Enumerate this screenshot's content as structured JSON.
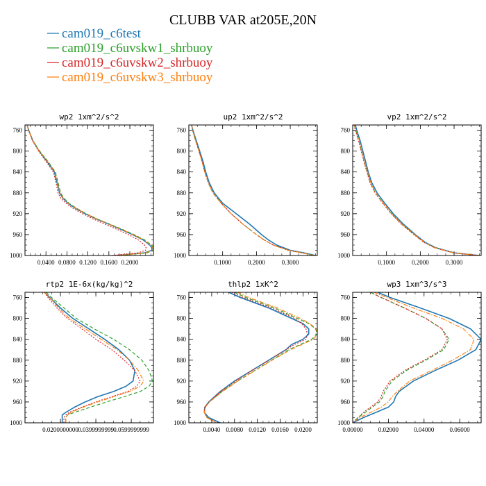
{
  "title": "CLUBB VAR at205E,20N",
  "legend": [
    {
      "label": "cam019_c6test",
      "color": "#1f77b4",
      "dash": "solid"
    },
    {
      "label": "cam019_c6uvskw1_shrbuoy",
      "color": "#2ca02c",
      "dash": "dashed"
    },
    {
      "label": "cam019_c6uvskw2_shrbuoy",
      "color": "#d62728",
      "dash": "dotted"
    },
    {
      "label": "cam019_c6uvskw3_shrbuoy",
      "color": "#ff7f0e",
      "dash": "dashdot"
    }
  ],
  "chart_data": [
    {
      "type": "line",
      "title": "wp2  1xm^2/s^2",
      "ylim": [
        1000,
        750
      ],
      "y_ticks": [
        "760",
        "800",
        "840",
        "880",
        "920",
        "960",
        "1000"
      ],
      "y_tick_values": [
        760,
        800,
        840,
        880,
        920,
        960,
        1000
      ],
      "xlim": [
        0.0,
        0.245
      ],
      "x_ticks": [
        "0.0400",
        "0.0800",
        "0.1200",
        "0.1600",
        "0.2000"
      ],
      "x_tick_values": [
        0.04,
        0.08,
        0.12,
        0.16,
        0.2
      ],
      "y": [
        750,
        760,
        780,
        800,
        820,
        840,
        860,
        880,
        890,
        900,
        910,
        920,
        930,
        940,
        950,
        960,
        970,
        980,
        985,
        990,
        995,
        1000
      ],
      "series": [
        {
          "values": [
            0.004,
            0.007,
            0.015,
            0.027,
            0.042,
            0.056,
            0.061,
            0.066,
            0.072,
            0.082,
            0.097,
            0.115,
            0.136,
            0.16,
            0.183,
            0.205,
            0.225,
            0.238,
            0.242,
            0.242,
            0.228,
            0.175
          ]
        },
        {
          "values": [
            0.004,
            0.007,
            0.015,
            0.028,
            0.044,
            0.058,
            0.063,
            0.068,
            0.074,
            0.084,
            0.099,
            0.117,
            0.138,
            0.162,
            0.186,
            0.208,
            0.228,
            0.241,
            0.246,
            0.246,
            0.233,
            0.18
          ]
        },
        {
          "values": [
            0.004,
            0.007,
            0.014,
            0.026,
            0.04,
            0.054,
            0.059,
            0.063,
            0.068,
            0.078,
            0.092,
            0.11,
            0.13,
            0.153,
            0.176,
            0.197,
            0.216,
            0.228,
            0.231,
            0.23,
            0.215,
            0.165
          ]
        },
        {
          "values": [
            0.004,
            0.007,
            0.015,
            0.027,
            0.043,
            0.057,
            0.062,
            0.067,
            0.073,
            0.083,
            0.098,
            0.116,
            0.137,
            0.161,
            0.184,
            0.206,
            0.226,
            0.239,
            0.244,
            0.244,
            0.23,
            0.177
          ]
        }
      ]
    },
    {
      "type": "line",
      "title": "up2  1xm^2/s^2",
      "ylim": [
        1000,
        750
      ],
      "y_ticks": [
        "760",
        "800",
        "840",
        "880",
        "920",
        "960",
        "1000"
      ],
      "y_tick_values": [
        760,
        800,
        840,
        880,
        920,
        960,
        1000
      ],
      "xlim": [
        0.0,
        0.38
      ],
      "x_ticks": [
        "0.1000",
        "0.2000",
        "0.3000"
      ],
      "x_tick_values": [
        0.1,
        0.2,
        0.3
      ],
      "y": [
        750,
        760,
        780,
        800,
        820,
        840,
        860,
        880,
        900,
        920,
        940,
        960,
        970,
        980,
        990,
        995,
        1000
      ],
      "series": [
        {
          "values": [
            0.008,
            0.012,
            0.022,
            0.032,
            0.042,
            0.05,
            0.06,
            0.075,
            0.1,
            0.14,
            0.18,
            0.215,
            0.235,
            0.26,
            0.3,
            0.34,
            0.375
          ]
        },
        {
          "values": [
            0.008,
            0.011,
            0.02,
            0.03,
            0.039,
            0.047,
            0.057,
            0.071,
            0.096,
            0.125,
            0.16,
            0.2,
            0.222,
            0.25,
            0.295,
            0.335,
            0.372
          ]
        },
        {
          "values": [
            0.008,
            0.011,
            0.02,
            0.03,
            0.039,
            0.047,
            0.057,
            0.071,
            0.096,
            0.125,
            0.16,
            0.2,
            0.222,
            0.25,
            0.295,
            0.335,
            0.372
          ]
        },
        {
          "values": [
            0.008,
            0.011,
            0.02,
            0.03,
            0.039,
            0.047,
            0.057,
            0.071,
            0.096,
            0.125,
            0.16,
            0.2,
            0.222,
            0.25,
            0.295,
            0.335,
            0.372
          ]
        }
      ]
    },
    {
      "type": "line",
      "title": "vp2  1xm^2/s^2",
      "ylim": [
        1000,
        750
      ],
      "y_ticks": [
        "760",
        "800",
        "840",
        "880",
        "920",
        "960",
        "1000"
      ],
      "y_tick_values": [
        760,
        800,
        840,
        880,
        920,
        960,
        1000
      ],
      "xlim": [
        0.0,
        0.38
      ],
      "x_ticks": [
        "0.1000",
        "0.2000",
        "0.3000"
      ],
      "x_tick_values": [
        0.1,
        0.2,
        0.3
      ],
      "y": [
        750,
        760,
        780,
        800,
        820,
        840,
        860,
        880,
        900,
        920,
        940,
        960,
        975,
        985,
        995,
        1000
      ],
      "series": [
        {
          "values": [
            0.008,
            0.012,
            0.022,
            0.03,
            0.038,
            0.046,
            0.056,
            0.072,
            0.095,
            0.12,
            0.15,
            0.185,
            0.215,
            0.245,
            0.3,
            0.375
          ]
        },
        {
          "values": [
            0.005,
            0.009,
            0.018,
            0.026,
            0.034,
            0.043,
            0.052,
            0.067,
            0.09,
            0.115,
            0.145,
            0.182,
            0.212,
            0.242,
            0.298,
            0.373
          ]
        },
        {
          "values": [
            0.004,
            0.008,
            0.017,
            0.025,
            0.033,
            0.042,
            0.051,
            0.066,
            0.089,
            0.114,
            0.144,
            0.181,
            0.211,
            0.241,
            0.297,
            0.372
          ]
        },
        {
          "values": [
            0.006,
            0.01,
            0.019,
            0.027,
            0.035,
            0.044,
            0.053,
            0.068,
            0.091,
            0.116,
            0.146,
            0.183,
            0.213,
            0.243,
            0.299,
            0.374
          ]
        }
      ]
    },
    {
      "type": "line",
      "title": "rtp2  1E-6x(kg/kg)^2",
      "ylim": [
        1000,
        750
      ],
      "y_ticks": [
        "760",
        "800",
        "840",
        "880",
        "920",
        "960",
        "1000"
      ],
      "y_tick_values": [
        760,
        800,
        840,
        880,
        920,
        960,
        1000
      ],
      "xlim": [
        0.0,
        0.0725
      ],
      "x_ticks": [
        "0.0200000000",
        "0.0399999999",
        "0.0599999999"
      ],
      "x_tick_values": [
        0.02,
        0.04,
        0.06
      ],
      "y": [
        750,
        760,
        780,
        800,
        820,
        840,
        860,
        880,
        900,
        920,
        930,
        940,
        950,
        960,
        970,
        980,
        985,
        990,
        1000
      ],
      "series": [
        {
          "values": [
            0.011,
            0.014,
            0.02,
            0.027,
            0.036,
            0.045,
            0.053,
            0.059,
            0.062,
            0.061,
            0.057,
            0.05,
            0.041,
            0.034,
            0.028,
            0.023,
            0.021,
            0.021,
            0.021
          ]
        },
        {
          "values": [
            0.012,
            0.015,
            0.022,
            0.029,
            0.039,
            0.05,
            0.059,
            0.066,
            0.07,
            0.072,
            0.07,
            0.065,
            0.056,
            0.046,
            0.037,
            0.028,
            0.024,
            0.023,
            0.023
          ]
        },
        {
          "values": [
            0.011,
            0.013,
            0.018,
            0.024,
            0.032,
            0.04,
            0.049,
            0.056,
            0.062,
            0.065,
            0.063,
            0.058,
            0.049,
            0.04,
            0.032,
            0.025,
            0.023,
            0.022,
            0.022
          ]
        },
        {
          "values": [
            0.011,
            0.014,
            0.019,
            0.025,
            0.034,
            0.043,
            0.052,
            0.059,
            0.064,
            0.067,
            0.065,
            0.059,
            0.05,
            0.041,
            0.033,
            0.026,
            0.024,
            0.023,
            0.023
          ]
        }
      ]
    },
    {
      "type": "line",
      "title": "thlp2  1xK^2",
      "ylim": [
        1000,
        750
      ],
      "y_ticks": [
        "760",
        "800",
        "840",
        "880",
        "920",
        "960",
        "1000"
      ],
      "y_tick_values": [
        760,
        800,
        840,
        880,
        920,
        960,
        1000
      ],
      "xlim": [
        0.0,
        0.0225
      ],
      "x_ticks": [
        "0.0040",
        "0.0080",
        "0.0120",
        "0.0160",
        "0.0200"
      ],
      "x_tick_values": [
        0.004,
        0.008,
        0.012,
        0.016,
        0.02
      ],
      "y": [
        750,
        760,
        780,
        800,
        810,
        820,
        830,
        840,
        850,
        860,
        880,
        900,
        920,
        940,
        960,
        970,
        980,
        990,
        1000
      ],
      "series": [
        {
          "values": [
            0.007,
            0.009,
            0.014,
            0.018,
            0.02,
            0.021,
            0.021,
            0.02,
            0.018,
            0.017,
            0.014,
            0.011,
            0.008,
            0.0055,
            0.0035,
            0.0028,
            0.0027,
            0.0035,
            0.0055
          ]
        },
        {
          "values": [
            0.008,
            0.01,
            0.015,
            0.019,
            0.021,
            0.0222,
            0.0225,
            0.0215,
            0.0195,
            0.0175,
            0.0145,
            0.0115,
            0.0085,
            0.0058,
            0.0036,
            0.0029,
            0.0027,
            0.0032,
            0.0048
          ]
        },
        {
          "values": [
            0.0075,
            0.0095,
            0.0145,
            0.0185,
            0.0198,
            0.0205,
            0.0208,
            0.0205,
            0.0185,
            0.017,
            0.014,
            0.011,
            0.0082,
            0.0056,
            0.0035,
            0.0028,
            0.0027,
            0.0032,
            0.0048
          ]
        },
        {
          "values": [
            0.0085,
            0.0105,
            0.0155,
            0.0195,
            0.0212,
            0.0223,
            0.0226,
            0.0218,
            0.0198,
            0.0178,
            0.0146,
            0.0116,
            0.0086,
            0.0059,
            0.0036,
            0.0029,
            0.0027,
            0.0032,
            0.0048
          ]
        }
      ]
    },
    {
      "type": "line",
      "title": "wp3  1xm^3/s^3",
      "ylim": [
        1000,
        750
      ],
      "y_ticks": [
        "760",
        "800",
        "840",
        "880",
        "920",
        "960",
        "1000"
      ],
      "y_tick_values": [
        760,
        800,
        840,
        880,
        920,
        960,
        1000
      ],
      "xlim": [
        0.0,
        0.072
      ],
      "x_ticks": [
        "0.00000",
        "0.02000",
        "0.04000",
        "0.06000"
      ],
      "x_tick_values": [
        0.0,
        0.02,
        0.04,
        0.06
      ],
      "y": [
        750,
        760,
        780,
        800,
        820,
        840,
        860,
        880,
        900,
        920,
        940,
        950,
        960,
        970,
        980,
        990,
        1000
      ],
      "series": [
        {
          "values": [
            0.014,
            0.021,
            0.038,
            0.054,
            0.066,
            0.072,
            0.069,
            0.059,
            0.046,
            0.034,
            0.026,
            0.024,
            0.023,
            0.02,
            0.013,
            0.006,
            0.0
          ]
        },
        {
          "values": [
            0.01,
            0.016,
            0.029,
            0.041,
            0.05,
            0.054,
            0.051,
            0.041,
            0.03,
            0.022,
            0.018,
            0.017,
            0.015,
            0.011,
            0.007,
            0.003,
            0.0
          ]
        },
        {
          "values": [
            0.01,
            0.016,
            0.029,
            0.041,
            0.05,
            0.053,
            0.05,
            0.04,
            0.029,
            0.021,
            0.017,
            0.016,
            0.014,
            0.01,
            0.006,
            0.003,
            0.0
          ]
        },
        {
          "values": [
            0.012,
            0.019,
            0.034,
            0.05,
            0.062,
            0.068,
            0.066,
            0.056,
            0.044,
            0.032,
            0.025,
            0.022,
            0.02,
            0.016,
            0.01,
            0.004,
            0.0
          ]
        }
      ]
    }
  ]
}
